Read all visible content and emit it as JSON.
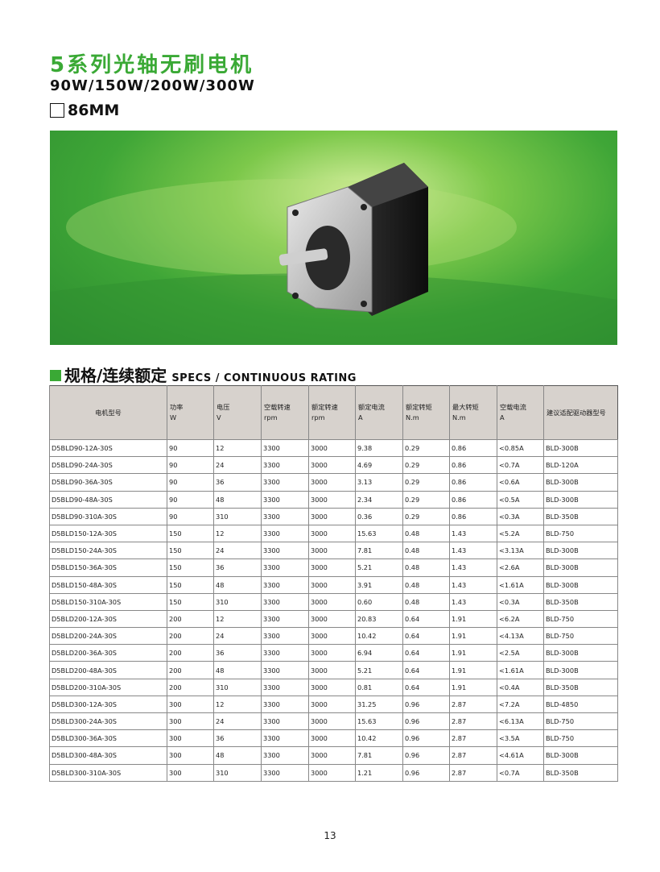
{
  "header": {
    "title": "5系列光轴无刷电机",
    "power": "90W/150W/200W/300W",
    "frame_size": "86MM"
  },
  "section": {
    "title_cn": "规格/连续额定",
    "title_en": "SPECS / CONTINUOUS RATING"
  },
  "colors": {
    "accent": "#3aa935",
    "header_bg": "#d7d2cd"
  },
  "table": {
    "headers": [
      [
        "电机型号",
        ""
      ],
      [
        "功率",
        "W"
      ],
      [
        "电压",
        "V"
      ],
      [
        "空载转速",
        "rpm"
      ],
      [
        "额定转速",
        "rpm"
      ],
      [
        "额定电流",
        "A"
      ],
      [
        "额定转矩",
        "N.m"
      ],
      [
        "最大转矩",
        "N.m"
      ],
      [
        "空载电流",
        "A"
      ],
      [
        "建议适配驱动器型号",
        ""
      ]
    ],
    "rows": [
      [
        "D5BLD90-12A-30S",
        "90",
        "12",
        "3300",
        "3000",
        "9.38",
        "0.29",
        "0.86",
        "<0.85A",
        "BLD-300B"
      ],
      [
        "D5BLD90-24A-30S",
        "90",
        "24",
        "3300",
        "3000",
        "4.69",
        "0.29",
        "0.86",
        "<0.7A",
        "BLD-120A"
      ],
      [
        "D5BLD90-36A-30S",
        "90",
        "36",
        "3300",
        "3000",
        "3.13",
        "0.29",
        "0.86",
        "<0.6A",
        "BLD-300B"
      ],
      [
        "D5BLD90-48A-30S",
        "90",
        "48",
        "3300",
        "3000",
        "2.34",
        "0.29",
        "0.86",
        "<0.5A",
        "BLD-300B"
      ],
      [
        "D5BLD90-310A-30S",
        "90",
        "310",
        "3300",
        "3000",
        "0.36",
        "0.29",
        "0.86",
        "<0.3A",
        "BLD-350B"
      ],
      [
        "D5BLD150-12A-30S",
        "150",
        "12",
        "3300",
        "3000",
        "15.63",
        "0.48",
        "1.43",
        "<5.2A",
        "BLD-750"
      ],
      [
        "D5BLD150-24A-30S",
        "150",
        "24",
        "3300",
        "3000",
        "7.81",
        "0.48",
        "1.43",
        "<3.13A",
        "BLD-300B"
      ],
      [
        "D5BLD150-36A-30S",
        "150",
        "36",
        "3300",
        "3000",
        "5.21",
        "0.48",
        "1.43",
        "<2.6A",
        "BLD-300B"
      ],
      [
        "D5BLD150-48A-30S",
        "150",
        "48",
        "3300",
        "3000",
        "3.91",
        "0.48",
        "1.43",
        "<1.61A",
        "BLD-300B"
      ],
      [
        "D5BLD150-310A-30S",
        "150",
        "310",
        "3300",
        "3000",
        "0.60",
        "0.48",
        "1.43",
        "<0.3A",
        "BLD-350B"
      ],
      [
        "D5BLD200-12A-30S",
        "200",
        "12",
        "3300",
        "3000",
        "20.83",
        "0.64",
        "1.91",
        "<6.2A",
        "BLD-750"
      ],
      [
        "D5BLD200-24A-30S",
        "200",
        "24",
        "3300",
        "3000",
        "10.42",
        "0.64",
        "1.91",
        "<4.13A",
        "BLD-750"
      ],
      [
        "D5BLD200-36A-30S",
        "200",
        "36",
        "3300",
        "3000",
        "6.94",
        "0.64",
        "1.91",
        "<2.5A",
        "BLD-300B"
      ],
      [
        "D5BLD200-48A-30S",
        "200",
        "48",
        "3300",
        "3000",
        "5.21",
        "0.64",
        "1.91",
        "<1.61A",
        "BLD-300B"
      ],
      [
        "D5BLD200-310A-30S",
        "200",
        "310",
        "3300",
        "3000",
        "0.81",
        "0.64",
        "1.91",
        "<0.4A",
        "BLD-350B"
      ],
      [
        "D5BLD300-12A-30S",
        "300",
        "12",
        "3300",
        "3000",
        "31.25",
        "0.96",
        "2.87",
        "<7.2A",
        "BLD-4850"
      ],
      [
        "D5BLD300-24A-30S",
        "300",
        "24",
        "3300",
        "3000",
        "15.63",
        "0.96",
        "2.87",
        "<6.13A",
        "BLD-750"
      ],
      [
        "D5BLD300-36A-30S",
        "300",
        "36",
        "3300",
        "3000",
        "10.42",
        "0.96",
        "2.87",
        "<3.5A",
        "BLD-750"
      ],
      [
        "D5BLD300-48A-30S",
        "300",
        "48",
        "3300",
        "3000",
        "7.81",
        "0.96",
        "2.87",
        "<4.61A",
        "BLD-300B"
      ],
      [
        "D5BLD300-310A-30S",
        "300",
        "310",
        "3300",
        "3000",
        "1.21",
        "0.96",
        "2.87",
        "<0.7A",
        "BLD-350B"
      ]
    ]
  },
  "footer": {
    "page_number": "13"
  }
}
